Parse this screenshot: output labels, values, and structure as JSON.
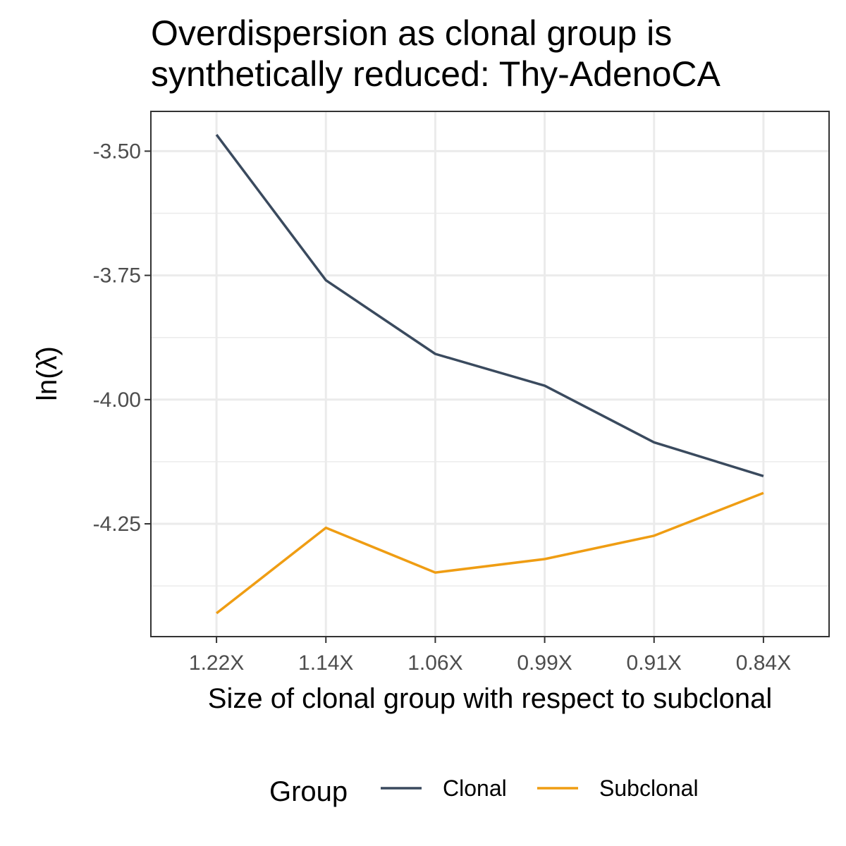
{
  "chart_data": {
    "type": "line",
    "title_lines": [
      "Overdispersion as clonal group is",
      "synthetically reduced: Thy-AdenoCA"
    ],
    "xlabel": "Size of clonal group with respect to subclonal",
    "ylabel": "ln(λ̂)",
    "categories": [
      "1.22X",
      "1.14X",
      "1.06X",
      "0.99X",
      "0.91X",
      "0.84X"
    ],
    "y_ticks": [
      -3.5,
      -3.75,
      -4.0,
      -4.25
    ],
    "y_tick_labels": [
      "-3.50",
      "-3.75",
      "-4.00",
      "-4.25"
    ],
    "ylim": [
      -4.477,
      -3.42
    ],
    "grid": true,
    "legend_position": "bottom",
    "legend_title": "Group",
    "series": [
      {
        "name": "Clonal",
        "color": "#3a4a5e",
        "values": [
          -3.467,
          -3.76,
          -3.908,
          -3.972,
          -4.086,
          -4.154
        ]
      },
      {
        "name": "Subclonal",
        "color": "#ef9d13",
        "values": [
          -4.43,
          -4.258,
          -4.348,
          -4.321,
          -4.274,
          -4.188
        ]
      }
    ]
  }
}
